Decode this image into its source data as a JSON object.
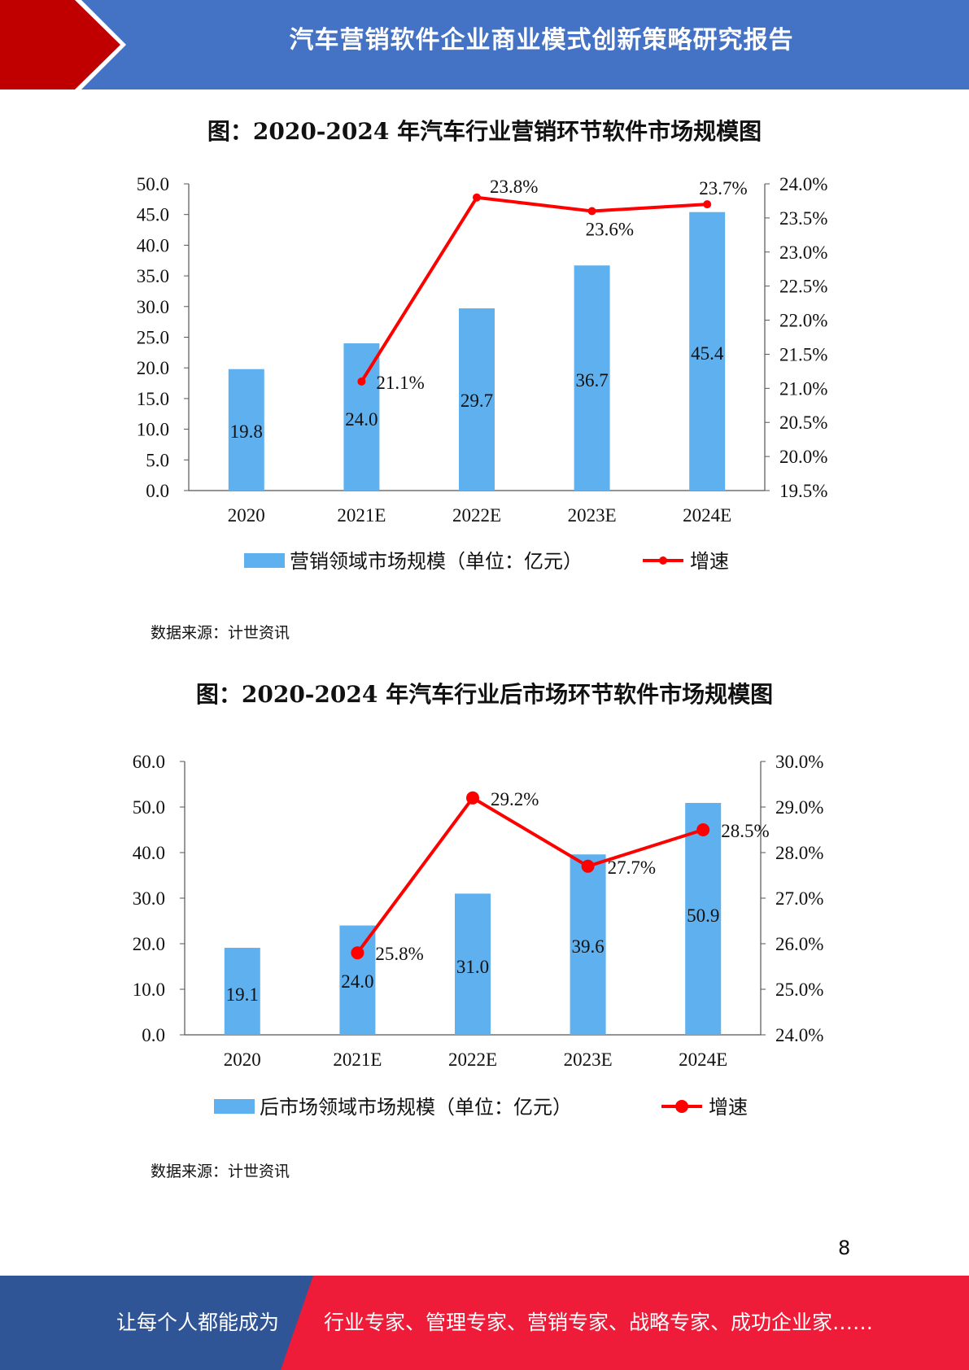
{
  "header": {
    "title": "汽车营销软件企业商业模式创新策略研究报告"
  },
  "colors": {
    "header_blue": "#4472c4",
    "header_red": "#c00000",
    "bar": "#5fb0ee",
    "line": "#ff0000",
    "footer_blue": "#2f5597",
    "footer_red": "#ef1c39"
  },
  "chart_data": [
    {
      "type": "bar",
      "title": "图：2020-2024 年汽车行业营销环节软件市场规模图",
      "categories": [
        "2020",
        "2021E",
        "2022E",
        "2023E",
        "2024E"
      ],
      "series": [
        {
          "name": "营销领域市场规模（单位：亿元）",
          "type": "bar",
          "axis": "left",
          "values": [
            19.8,
            24.0,
            29.7,
            36.7,
            45.4
          ],
          "labels": [
            "19.8",
            "24.0",
            "29.7",
            "36.7",
            "45.4"
          ]
        },
        {
          "name": "增速",
          "type": "line",
          "axis": "right",
          "values": [
            null,
            21.1,
            23.8,
            23.6,
            23.7
          ],
          "labels": [
            "",
            "21.1%",
            "23.8%",
            "23.6%",
            "23.7%"
          ]
        }
      ],
      "left_axis": {
        "ylim": [
          0,
          50
        ],
        "ticks": [
          "0.0",
          "5.0",
          "10.0",
          "15.0",
          "20.0",
          "25.0",
          "30.0",
          "35.0",
          "40.0",
          "45.0",
          "50.0"
        ]
      },
      "right_axis": {
        "ylim": [
          19.5,
          24.0
        ],
        "ticks": [
          "19.5%",
          "20.0%",
          "20.5%",
          "21.0%",
          "21.5%",
          "22.0%",
          "22.5%",
          "23.0%",
          "23.5%",
          "24.0%"
        ]
      },
      "legend": "bottom",
      "grid": false,
      "source": "数据来源：计世资讯"
    },
    {
      "type": "bar",
      "title": "图：2020-2024 年汽车行业后市场环节软件市场规模图",
      "categories": [
        "2020",
        "2021E",
        "2022E",
        "2023E",
        "2024E"
      ],
      "series": [
        {
          "name": "后市场领域市场规模（单位：亿元）",
          "type": "bar",
          "axis": "left",
          "values": [
            19.1,
            24.0,
            31.0,
            39.6,
            50.9
          ],
          "labels": [
            "19.1",
            "24.0",
            "31.0",
            "39.6",
            "50.9"
          ]
        },
        {
          "name": "增速",
          "type": "line",
          "axis": "right",
          "values": [
            null,
            25.8,
            29.2,
            27.7,
            28.5
          ],
          "labels": [
            "",
            "25.8%",
            "29.2%",
            "27.7%",
            "28.5%"
          ]
        }
      ],
      "left_axis": {
        "ylim": [
          0,
          60
        ],
        "ticks": [
          "0.0",
          "10.0",
          "20.0",
          "30.0",
          "40.0",
          "50.0",
          "60.0"
        ]
      },
      "right_axis": {
        "ylim": [
          24.0,
          30.0
        ],
        "ticks": [
          "24.0%",
          "25.0%",
          "26.0%",
          "27.0%",
          "28.0%",
          "29.0%",
          "30.0%"
        ]
      },
      "legend": "bottom",
      "grid": false,
      "source": "数据来源：计世资讯"
    }
  ],
  "page_number": "8",
  "footer": {
    "left": "让每个人都能成为",
    "right": "行业专家、管理专家、营销专家、战略专家、成功企业家……"
  }
}
